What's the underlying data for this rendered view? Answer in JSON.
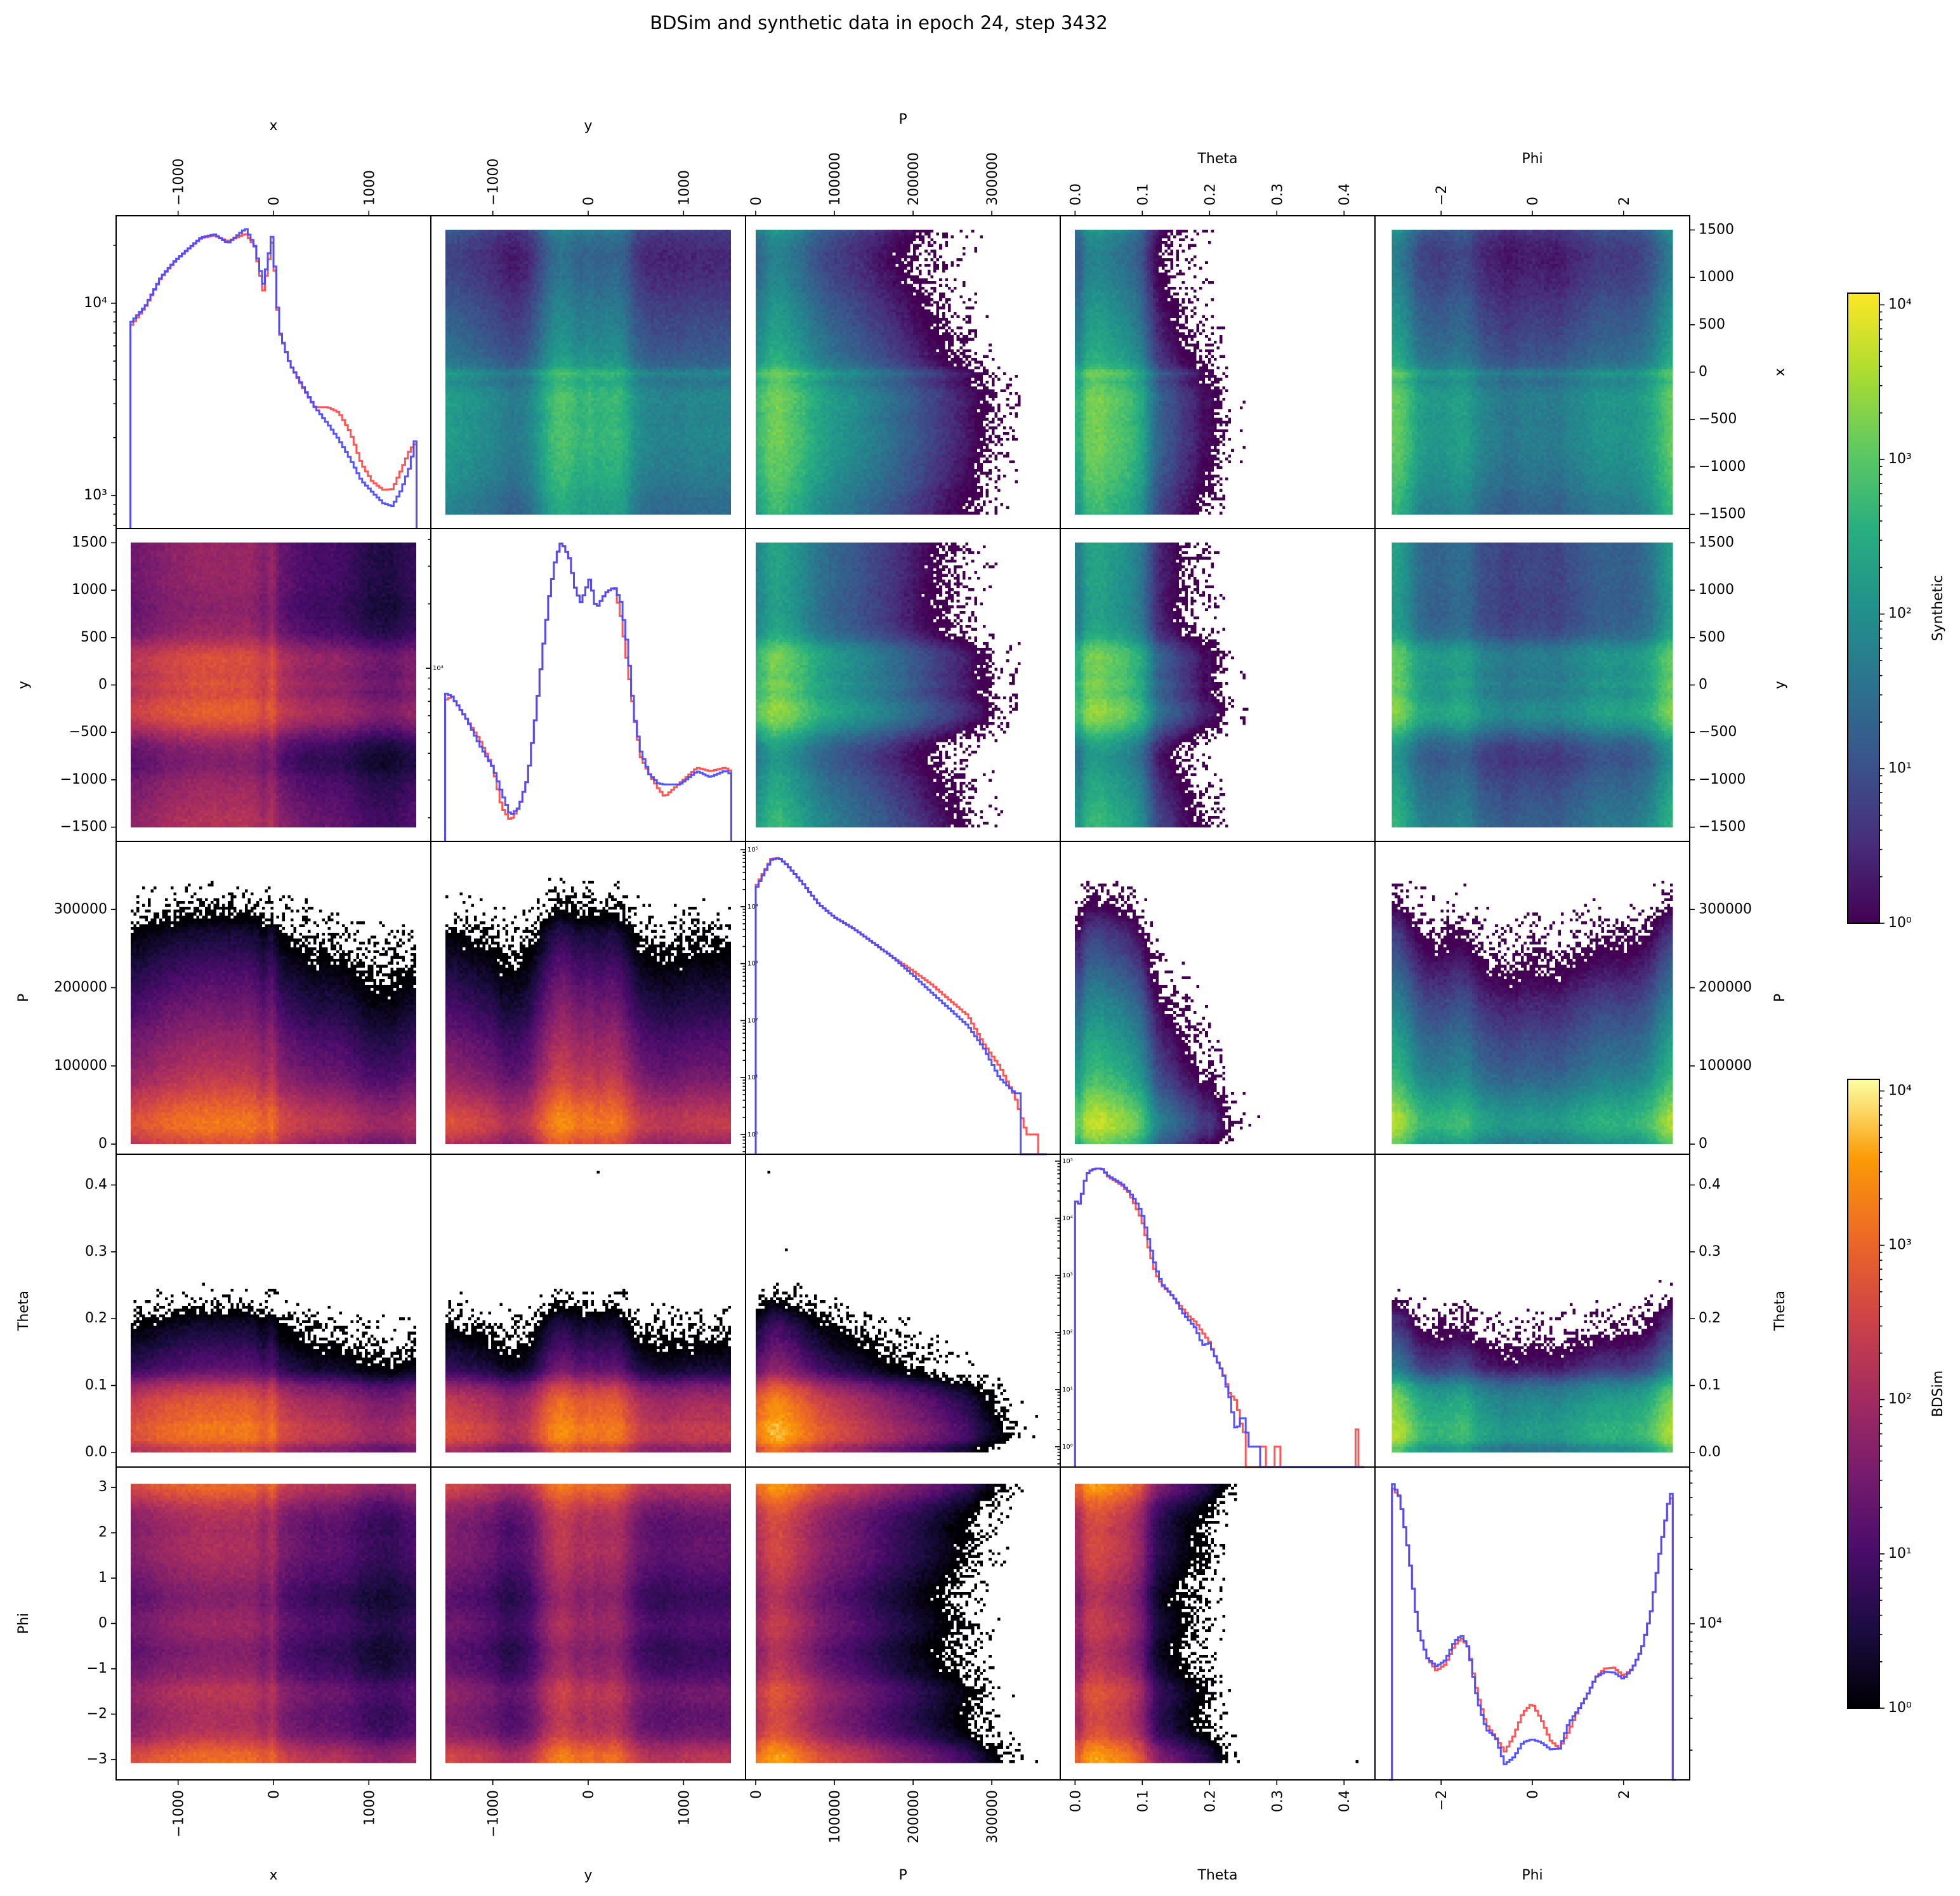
{
  "chart_data": {
    "type": "pairplot",
    "title": "BDSim and synthetic data in epoch 24, step 3432",
    "variables": [
      {
        "name": "x",
        "range": [
          -1650,
          1650
        ],
        "extent": [
          -1500,
          1500
        ],
        "ticks": [
          -1000,
          0,
          1000
        ],
        "tick_labels": [
          "−1000",
          "0",
          "1000"
        ],
        "row_ticks": [
          1500,
          1000,
          500,
          0,
          -500,
          -1000,
          -1500
        ],
        "row_tick_labels": [
          "1500",
          "1000",
          "500",
          "0",
          "−500",
          "−1000",
          "−1500"
        ]
      },
      {
        "name": "y",
        "range": [
          -1650,
          1650
        ],
        "extent": [
          -1500,
          1500
        ],
        "ticks": [
          -1000,
          0,
          1000
        ],
        "tick_labels": [
          "−1000",
          "0",
          "1000"
        ],
        "row_ticks": [
          1500,
          1000,
          500,
          0,
          -500,
          -1000,
          -1500
        ],
        "row_tick_labels": [
          "1500",
          "1000",
          "500",
          "0",
          "−500",
          "−1000",
          "−1500"
        ]
      },
      {
        "name": "P",
        "range": [
          -12900,
          387000
        ],
        "extent": [
          0,
          370000
        ],
        "ticks": [
          0,
          100000,
          200000,
          300000
        ],
        "tick_labels": [
          "0",
          "100000",
          "200000",
          "300000"
        ],
        "row_ticks": [
          300000,
          200000,
          100000,
          0
        ],
        "row_tick_labels": [
          "300000",
          "200000",
          "100000",
          "0"
        ]
      },
      {
        "name": "Theta",
        "range": [
          -0.022,
          0.446
        ],
        "extent": [
          0,
          0.43
        ],
        "ticks": [
          0,
          0.1,
          0.2,
          0.3,
          0.4
        ],
        "tick_labels": [
          "0.0",
          "0.1",
          "0.2",
          "0.3",
          "0.4"
        ],
        "row_ticks": [
          0.4,
          0.3,
          0.2,
          0.1,
          0
        ],
        "row_tick_labels": [
          "0.4",
          "0.3",
          "0.2",
          "0.1",
          "0.0"
        ]
      },
      {
        "name": "Phi",
        "range": [
          -3.45,
          3.45
        ],
        "extent": [
          -3.1416,
          3.1416
        ],
        "ticks": [
          -2,
          0,
          2
        ],
        "tick_labels": [
          "−2",
          "0",
          "2"
        ],
        "row_ticks": [
          3,
          2,
          1,
          0,
          -1,
          -2,
          -3
        ],
        "row_tick_labels": [
          "3",
          "2",
          "1",
          "0",
          "−1",
          "−2",
          "−3"
        ]
      }
    ],
    "diagonal": [
      {
        "variable": "x",
        "yscale": "log",
        "ylim": [
          673,
          28500
        ],
        "ytick_values": [
          10000,
          1000
        ],
        "ytick_labels": [
          "10⁴",
          "10³"
        ],
        "x": [
          -1495,
          -1339,
          -1176,
          -1036,
          -896,
          -756,
          -616,
          -476,
          -289,
          -196,
          -103,
          -9,
          61,
          177,
          317,
          434,
          574,
          690,
          807,
          924,
          1040,
          1157,
          1250,
          1343,
          1437,
          1495
        ],
        "series": [
          {
            "name": "BDSim",
            "color": "#ff4c4c",
            "values": [
              7600,
              9600,
              13600,
              16400,
              19000,
              21800,
              22500,
              21000,
              23000,
              19800,
              11500,
              21500,
              7200,
              4800,
              3600,
              2880,
              2880,
              2700,
              2140,
              1470,
              1180,
              1070,
              1080,
              1360,
              1740,
              1870
            ]
          },
          {
            "name": "Synthetic",
            "color": "#4c4cff",
            "values": [
              7900,
              9700,
              13700,
              16500,
              19100,
              22000,
              22800,
              20500,
              24500,
              20000,
              12500,
              23000,
              7300,
              4800,
              3650,
              2900,
              2350,
              1950,
              1550,
              1200,
              1040,
              910,
              880,
              1070,
              1430,
              2030
            ]
          }
        ]
      },
      {
        "variable": "y",
        "yscale": "log",
        "ylim": [
          1550,
          45000
        ],
        "ytick_values": [
          10000
        ],
        "ytick_labels": [
          "10⁴"
        ],
        "x": [
          -1485,
          -1428,
          -1269,
          -1132,
          -995,
          -904,
          -813,
          -722,
          -631,
          -540,
          -472,
          -403,
          -335,
          -278,
          -198,
          -130,
          -73,
          18,
          86,
          189,
          280,
          348,
          416,
          485,
          553,
          644,
          735,
          804,
          963,
          1145,
          1282,
          1441,
          1498
        ],
        "series": [
          {
            "name": "BDSim",
            "color": "#ff4c4c",
            "values": [
              7140,
              7400,
              5750,
              4600,
              3430,
              2240,
              1940,
              2240,
              3080,
              6450,
              12300,
              22100,
              33200,
              39000,
              33200,
              23200,
              20300,
              26200,
              19000,
              22600,
              24000,
              17300,
              10300,
              6000,
              3850,
              3200,
              2750,
              2510,
              2900,
              3430,
              3300,
              3430,
              3300
            ]
          },
          {
            "name": "Synthetic",
            "color": "#4c4cff",
            "values": [
              7600,
              7400,
              5750,
              4350,
              3430,
              2620,
              2050,
              2240,
              3080,
              6450,
              12300,
              22100,
              33200,
              39000,
              33200,
              23200,
              20300,
              26200,
              19000,
              22600,
              24000,
              20300,
              12600,
              6000,
              4100,
              3200,
              2900,
              2860,
              2860,
              3300,
              3100,
              3320,
              3200
            ]
          }
        ]
      },
      {
        "variable": "P",
        "yscale": "log",
        "ylim": [
          0.45,
          140000
        ],
        "ytick_values": [
          1,
          10,
          100,
          1000,
          10000,
          100000
        ],
        "ytick_labels": [
          "10⁰",
          "10¹",
          "10²",
          "10³",
          "10⁴",
          "10⁵"
        ],
        "x": [
          0,
          10000,
          20000,
          30000,
          40000,
          60000,
          80000,
          100000,
          125000,
          150000,
          175000,
          200000,
          225000,
          250000,
          270000,
          290000,
          310000,
          330000,
          345000,
          355000,
          365000
        ],
        "series": [
          {
            "name": "BDSim",
            "color": "#ff4c4c",
            "values": [
              21800,
              39000,
              69000,
              72000,
              54000,
              25800,
              11300,
              6600,
              4100,
              2300,
              1280,
              750,
              420,
              210,
              123,
              39,
              16,
              4.6,
              1,
              1,
              0
            ]
          },
          {
            "name": "Synthetic",
            "color": "#4c4cff",
            "values": [
              20000,
              37000,
              66000,
              72000,
              54000,
              25800,
              11300,
              6600,
              4100,
              2300,
              1280,
              630,
              300,
              145,
              81,
              33,
              10,
              5.3,
              0,
              0,
              0
            ]
          }
        ]
      },
      {
        "variable": "Theta",
        "yscale": "log",
        "ylim": [
          0.44,
          132000
        ],
        "ytick_values": [
          1,
          10,
          100,
          1000,
          10000,
          100000
        ],
        "ytick_labels": [
          "10⁰",
          "10¹",
          "10²",
          "10³",
          "10⁴",
          "10⁵"
        ],
        "x": [
          0,
          0.005,
          0.01,
          0.015,
          0.02,
          0.03,
          0.04,
          0.05,
          0.06,
          0.07,
          0.08,
          0.09,
          0.1,
          0.11,
          0.12,
          0.13,
          0.14,
          0.15,
          0.16,
          0.17,
          0.18,
          0.19,
          0.2,
          0.21,
          0.22,
          0.23,
          0.24,
          0.25,
          0.26,
          0.27,
          0.28,
          0.29,
          0.3,
          0.31,
          0.41,
          0.42
        ],
        "series": [
          {
            "name": "BDSim",
            "color": "#ff4c4c",
            "values": [
              23000,
              15800,
              24500,
              45000,
              65000,
              74000,
              74000,
              52800,
              45000,
              38000,
              28400,
              16600,
              9200,
              2960,
              1090,
              660,
              510,
              370,
              263,
              190,
              151,
              100,
              69,
              35,
              20,
              8.7,
              6.3,
              1.8,
              0,
              0,
              1,
              0,
              1,
              0,
              0,
              2
            ]
          },
          {
            "name": "Synthetic",
            "color": "#4c4cff",
            "values": [
              23000,
              15800,
              24500,
              45000,
              65000,
              74000,
              74000,
              55000,
              47000,
              40000,
              30000,
              20400,
              12300,
              4170,
              1390,
              700,
              520,
              370,
              224,
              162,
              117,
              60,
              65,
              35,
              20,
              7.4,
              1.8,
              3.9,
              1,
              1,
              0,
              0,
              0,
              0,
              0,
              0
            ]
          }
        ]
      },
      {
        "variable": "Phi",
        "yscale": "log",
        "ylim": [
          1370,
          73600
        ],
        "ytick_values": [
          10000
        ],
        "ytick_labels": [
          "10⁴"
        ],
        "x": [
          -3.1,
          -2.9,
          -2.7,
          -2.5,
          -2.3,
          -2.1,
          -1.9,
          -1.7,
          -1.55,
          -1.4,
          -1.2,
          -1.0,
          -0.8,
          -0.6,
          -0.4,
          -0.2,
          0,
          0.2,
          0.4,
          0.6,
          0.8,
          1.0,
          1.2,
          1.4,
          1.6,
          1.8,
          2.0,
          2.2,
          2.4,
          2.6,
          2.8,
          3.0,
          3.1
        ],
        "series": [
          {
            "name": "BDSim",
            "color": "#ff4c4c",
            "values": [
              58000,
              50000,
              24100,
              9440,
              6470,
              5500,
              5970,
              7600,
              8350,
              7400,
              4100,
              2770,
              2360,
              1960,
              2400,
              3220,
              3630,
              2970,
              2270,
              2040,
              2530,
              3310,
              3990,
              5080,
              5660,
              5730,
              5150,
              5660,
              7200,
              11400,
              24800,
              48500,
              50500
            ]
          },
          {
            "name": "Synthetic",
            "color": "#4c4cff",
            "values": [
              63000,
              50000,
              24100,
              9440,
              6470,
              5810,
              6300,
              8000,
              8650,
              7400,
              3790,
              2600,
              2360,
              1670,
              1830,
              2210,
              2300,
              2210,
              2020,
              2040,
              2820,
              3310,
              3990,
              5080,
              5430,
              5370,
              4950,
              5660,
              7200,
              11400,
              24800,
              48500,
              57000
            ]
          }
        ]
      }
    ],
    "lower_triangle": {
      "dataset": "BDSim",
      "colormap": "inferno",
      "type": "heatmap",
      "norm": "log"
    },
    "upper_triangle": {
      "dataset": "Synthetic",
      "colormap": "viridis",
      "type": "heatmap",
      "norm": "log"
    },
    "colorbars": [
      {
        "label": "Synthetic",
        "colormap": "viridis",
        "scale": "log",
        "range": [
          1,
          11900
        ],
        "tick_values": [
          1,
          10,
          100,
          1000,
          10000
        ],
        "tick_labels": [
          "10⁰",
          "10¹",
          "10²",
          "10³",
          "10⁴"
        ]
      },
      {
        "label": "BDSim",
        "colormap": "inferno",
        "scale": "log",
        "range": [
          1,
          11900
        ],
        "tick_values": [
          1,
          10,
          100,
          1000,
          10000
        ],
        "tick_labels": [
          "10⁰",
          "10¹",
          "10²",
          "10³",
          "10⁴"
        ]
      }
    ],
    "colors": {
      "BDSim": "#ff4c4c",
      "Synthetic": "#4c4cff"
    }
  }
}
